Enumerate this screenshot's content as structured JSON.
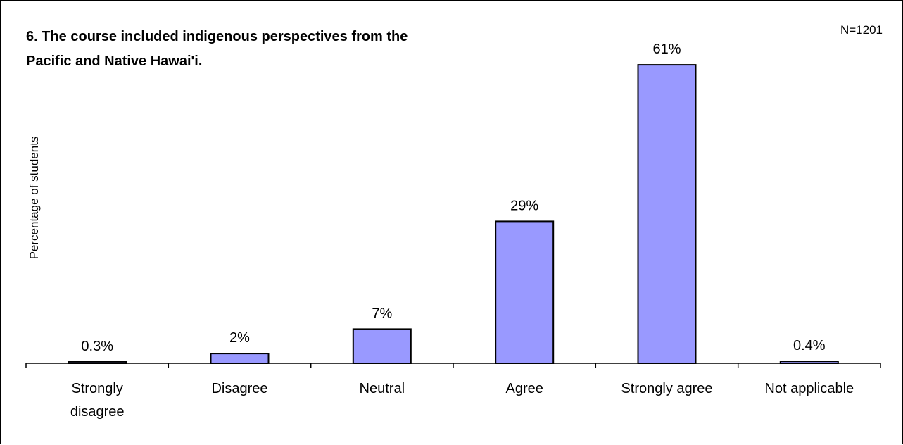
{
  "chart_data": {
    "type": "bar",
    "title_lines": [
      "6. The course included indigenous perspectives from the",
      "Pacific and Native Hawai'i."
    ],
    "sample_note": "N=1201",
    "xlabel": "",
    "ylabel": "Percentage of students",
    "ylim": [
      0,
      70
    ],
    "grid": false,
    "legend": "none",
    "categories": [
      [
        "Strongly",
        "disagree"
      ],
      [
        "Disagree"
      ],
      [
        "Neutral"
      ],
      [
        "Agree"
      ],
      [
        "Strongly agree"
      ],
      [
        "Not applicable"
      ]
    ],
    "values": [
      0.3,
      2,
      7,
      29,
      61,
      0.4
    ],
    "data_labels": [
      "0.3%",
      "2%",
      "7%",
      "29%",
      "61%",
      "0.4%"
    ],
    "bar_color": "#9999ff"
  }
}
